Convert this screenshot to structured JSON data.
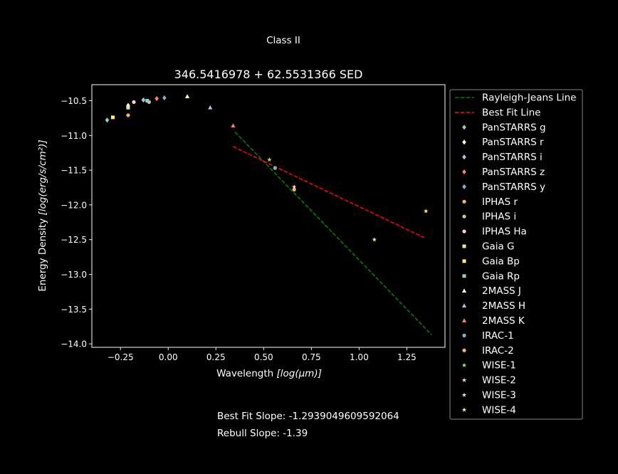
{
  "figure": {
    "suptitle": "Class II",
    "footer_lines": [
      "Best Fit Slope: -1.2939049609592064",
      "Rebull Slope: -1.39"
    ]
  },
  "chart_data": {
    "type": "scatter",
    "title": "346.5416978 + 62.5531366 SED",
    "xlabel_prefix": "Wavelength ",
    "xlabel_math": "[log(μm)]",
    "ylabel_prefix": "Energy Density ",
    "ylabel_math": "[log(erg/s/cm²)]",
    "xlim": [
      -0.4,
      1.45
    ],
    "ylim": [
      -14.05,
      -10.27
    ],
    "xticks": [
      -0.25,
      0.0,
      0.25,
      0.5,
      0.75,
      1.0,
      1.25
    ],
    "xticklabels": [
      "−0.25",
      "0.00",
      "0.25",
      "0.50",
      "0.75",
      "1.00",
      "1.25"
    ],
    "yticks": [
      -10.5,
      -11.0,
      -11.5,
      -12.0,
      -12.5,
      -13.0,
      -13.5,
      -14.0
    ],
    "yticklabels": [
      "−10.5",
      "−11.0",
      "−11.5",
      "−12.0",
      "−12.5",
      "−13.0",
      "−13.5",
      "−14.0"
    ],
    "background": "#000000",
    "foreground": "#ffffff",
    "grid": false,
    "legend_position": "outside right",
    "lines": [
      {
        "name": "Rayleigh-Jeans Line",
        "color": "#008000",
        "style": "dashed",
        "x": [
          0.35,
          1.38
        ],
        "y": [
          -10.95,
          -13.87
        ]
      },
      {
        "name": "Best Fit Line",
        "color": "#ff0000",
        "style": "dashed",
        "x": [
          0.34,
          1.34
        ],
        "y": [
          -11.16,
          -12.47
        ]
      }
    ],
    "series": [
      {
        "name": "PanSTARRS g",
        "marker": "diamond",
        "color": "#8dd3c7",
        "x": [
          -0.32
        ],
        "y": [
          -10.78
        ]
      },
      {
        "name": "PanSTARRS r",
        "marker": "diamond",
        "color": "#ffffb3",
        "x": [
          -0.21
        ],
        "y": [
          -10.57
        ]
      },
      {
        "name": "PanSTARRS i",
        "marker": "diamond",
        "color": "#bebada",
        "x": [
          -0.13
        ],
        "y": [
          -10.49
        ]
      },
      {
        "name": "PanSTARRS z",
        "marker": "diamond",
        "color": "#fb8072",
        "x": [
          -0.06
        ],
        "y": [
          -10.47
        ]
      },
      {
        "name": "PanSTARRS y",
        "marker": "diamond",
        "color": "#80b1d3",
        "x": [
          -0.02
        ],
        "y": [
          -10.46
        ]
      },
      {
        "name": "IPHAS r",
        "marker": "circle",
        "color": "#fdb462",
        "x": [
          -0.21
        ],
        "y": [
          -10.71
        ]
      },
      {
        "name": "IPHAS i",
        "marker": "circle",
        "color": "#b3de69",
        "x": [
          -0.1
        ],
        "y": [
          -10.52
        ]
      },
      {
        "name": "IPHAS Ha",
        "marker": "circle",
        "color": "#fccde5",
        "x": [
          -0.18
        ],
        "y": [
          -10.52
        ]
      },
      {
        "name": "Gaia G",
        "marker": "square",
        "color": "#d9f0a3",
        "x": [
          -0.21
        ],
        "y": [
          -10.6
        ]
      },
      {
        "name": "Gaia Bp",
        "marker": "square",
        "color": "#ffed6f",
        "x": [
          -0.29
        ],
        "y": [
          -10.74
        ]
      },
      {
        "name": "Gaia Rp",
        "marker": "square",
        "color": "#8dd3c7",
        "x": [
          -0.11
        ],
        "y": [
          -10.5
        ]
      },
      {
        "name": "2MASS J",
        "marker": "triangle",
        "color": "#ffffb3",
        "x": [
          0.1
        ],
        "y": [
          -10.44
        ]
      },
      {
        "name": "2MASS H",
        "marker": "triangle",
        "color": "#bebada",
        "x": [
          0.22
        ],
        "y": [
          -10.6
        ]
      },
      {
        "name": "2MASS K",
        "marker": "triangle",
        "color": "#fb8072",
        "x": [
          0.34
        ],
        "y": [
          -10.86
        ]
      },
      {
        "name": "IRAC-1",
        "marker": "circle",
        "color": "#80b1d3",
        "x": [
          0.56
        ],
        "y": [
          -11.47
        ]
      },
      {
        "name": "IRAC-2",
        "marker": "circle",
        "color": "#fdb462",
        "x": [
          0.66
        ],
        "y": [
          -11.78
        ]
      },
      {
        "name": "WISE-1",
        "marker": "star",
        "color": "#b3de69",
        "x": [
          0.53
        ],
        "y": [
          -11.35
        ]
      },
      {
        "name": "WISE-2",
        "marker": "star",
        "color": "#fccde5",
        "x": [
          0.66
        ],
        "y": [
          -11.74
        ]
      },
      {
        "name": "WISE-3",
        "marker": "star",
        "color": "#d9f0a3",
        "x": [
          1.08
        ],
        "y": [
          -12.5
        ]
      },
      {
        "name": "WISE-4",
        "marker": "star",
        "color": "#ffed6f",
        "x": [
          1.35
        ],
        "y": [
          -12.09
        ]
      }
    ]
  }
}
